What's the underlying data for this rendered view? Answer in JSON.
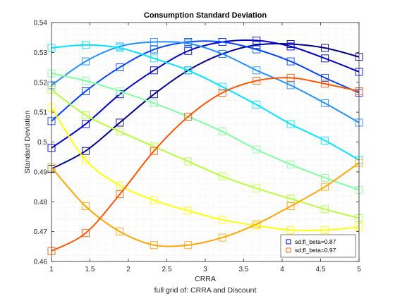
{
  "chart_data": {
    "type": "line",
    "title": "Consumption Standard Deviation",
    "xlabel": "CRRA",
    "ylabel": "Standard Deviation",
    "caption": "full grid of: CRRA and Discount",
    "xlim": [
      1,
      5
    ],
    "ylim": [
      0.46,
      0.54
    ],
    "xticks": [
      "1",
      "1.5",
      "2",
      "2.5",
      "3",
      "3.5",
      "4",
      "4.5",
      "5"
    ],
    "yticks": [
      "0.46",
      "0.47",
      "0.48",
      "0.49",
      "0.5",
      "0.51",
      "0.52",
      "0.53",
      "0.54"
    ],
    "grid": "minor-dotted",
    "legend_position": "bottom-right",
    "legend": [
      {
        "label": "sd;fl_beta=0.87",
        "color": "#0000cc"
      },
      {
        "label": "sd;fl_beta=0.97",
        "color": "#ff6a00"
      }
    ],
    "x": [
      1.0,
      1.444,
      1.889,
      2.333,
      2.778,
      3.222,
      3.667,
      4.111,
      4.556,
      5.0
    ],
    "series": [
      {
        "color": "#00008b",
        "values": [
          0.491,
          0.497,
          0.5065,
          0.516,
          0.524,
          0.5295,
          0.5325,
          0.5328,
          0.5315,
          0.5285
        ]
      },
      {
        "color": "#0000cd",
        "values": [
          0.498,
          0.506,
          0.516,
          0.524,
          0.5305,
          0.5335,
          0.534,
          0.532,
          0.528,
          0.5235
        ]
      },
      {
        "color": "#0044ff",
        "values": [
          0.507,
          0.517,
          0.525,
          0.531,
          0.5335,
          0.5335,
          0.531,
          0.527,
          0.5215,
          0.5165
        ]
      },
      {
        "color": "#1e90ff",
        "values": [
          0.519,
          0.527,
          0.532,
          0.5335,
          0.533,
          0.5295,
          0.524,
          0.519,
          0.513,
          0.5065
        ]
      },
      {
        "color": "#00e5ff",
        "values": [
          0.5315,
          0.5325,
          0.5315,
          0.528,
          0.524,
          0.5185,
          0.5125,
          0.506,
          0.5005,
          0.494
        ]
      },
      {
        "color": "#7fff9f",
        "values": [
          0.523,
          0.5205,
          0.517,
          0.513,
          0.5085,
          0.5035,
          0.4975,
          0.4925,
          0.488,
          0.484
        ]
      },
      {
        "color": "#b5ff3a",
        "values": [
          0.5175,
          0.509,
          0.5035,
          0.4985,
          0.4935,
          0.4885,
          0.4845,
          0.481,
          0.4775,
          0.4745
        ]
      },
      {
        "color": "#ffff00",
        "values": [
          0.5115,
          0.494,
          0.4855,
          0.4805,
          0.477,
          0.474,
          0.472,
          0.4705,
          0.4705,
          0.4715
        ]
      },
      {
        "color": "#ffa500",
        "values": [
          0.4915,
          0.4785,
          0.47,
          0.4655,
          0.4655,
          0.468,
          0.4725,
          0.4785,
          0.485,
          0.493
        ]
      },
      {
        "color": "#ff5500",
        "values": [
          0.4635,
          0.4695,
          0.4825,
          0.497,
          0.5085,
          0.5165,
          0.5205,
          0.5215,
          0.5195,
          0.517
        ]
      }
    ]
  }
}
